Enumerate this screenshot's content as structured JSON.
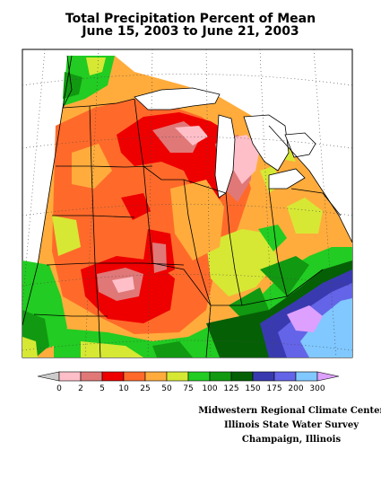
{
  "title_line1": "Total Precipitation Percent of Mean",
  "title_line2": "June 15, 2003 to June 21, 2003",
  "legend": {
    "labels": [
      "0",
      "2",
      "5",
      "10",
      "25",
      "50",
      "75",
      "100",
      "125",
      "150",
      "175",
      "200",
      "300"
    ],
    "colors": [
      "#ffbfc8",
      "#e07878",
      "#ee0000",
      "#ff6a2a",
      "#ffac3c",
      "#d6e834",
      "#22cc22",
      "#119911",
      "#056005",
      "#3a3ab0",
      "#6464e8",
      "#80c8ff"
    ],
    "low_arrow_color": "#cccccc",
    "high_arrow_color": "#dda0ff"
  },
  "credits": {
    "line1": "Midwestern Regional Climate Center",
    "line2": "Illinois State Water Survey",
    "line3": "Champaign, Illinois"
  }
}
